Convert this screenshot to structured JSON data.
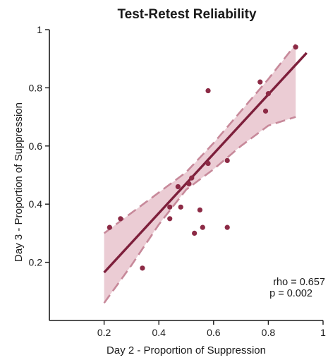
{
  "chart_data": {
    "type": "scatter",
    "title": "Test-Retest Reliability",
    "xlabel": "Day 2 - Proportion of Suppression",
    "ylabel": "Day 3  - Proportion of Suppression",
    "xlim": [
      0,
      1
    ],
    "ylim": [
      0,
      1
    ],
    "x_ticks": [
      0.2,
      0.4,
      0.6,
      0.8,
      1
    ],
    "x_tick_labels": [
      "0.2",
      "0.4",
      "0.6",
      "0.8",
      "1"
    ],
    "y_ticks": [
      0.2,
      0.4,
      0.6,
      0.8,
      1
    ],
    "y_tick_labels": [
      "0.2",
      "0.4",
      "0.6",
      "0.8",
      "1"
    ],
    "grid": false,
    "points": [
      {
        "x": 0.22,
        "y": 0.32
      },
      {
        "x": 0.26,
        "y": 0.35
      },
      {
        "x": 0.34,
        "y": 0.18
      },
      {
        "x": 0.44,
        "y": 0.39
      },
      {
        "x": 0.44,
        "y": 0.35
      },
      {
        "x": 0.47,
        "y": 0.46
      },
      {
        "x": 0.48,
        "y": 0.39
      },
      {
        "x": 0.51,
        "y": 0.47
      },
      {
        "x": 0.52,
        "y": 0.49
      },
      {
        "x": 0.53,
        "y": 0.3
      },
      {
        "x": 0.55,
        "y": 0.38
      },
      {
        "x": 0.56,
        "y": 0.32
      },
      {
        "x": 0.58,
        "y": 0.79
      },
      {
        "x": 0.58,
        "y": 0.54
      },
      {
        "x": 0.65,
        "y": 0.55
      },
      {
        "x": 0.65,
        "y": 0.32
      },
      {
        "x": 0.77,
        "y": 0.82
      },
      {
        "x": 0.79,
        "y": 0.72
      },
      {
        "x": 0.8,
        "y": 0.78
      },
      {
        "x": 0.9,
        "y": 0.94
      }
    ],
    "fit_line": {
      "x": [
        0.2,
        0.94
      ],
      "y": [
        0.165,
        0.92
      ]
    },
    "confidence_band": {
      "x": [
        0.2,
        0.3,
        0.4,
        0.5,
        0.6,
        0.7,
        0.8,
        0.9
      ],
      "upper": [
        0.3,
        0.37,
        0.44,
        0.51,
        0.61,
        0.72,
        0.83,
        0.95
      ],
      "lower": [
        0.06,
        0.19,
        0.33,
        0.45,
        0.52,
        0.6,
        0.67,
        0.7
      ]
    },
    "annotations": [
      "rho = 0.657",
      "p = 0.002"
    ],
    "colors": {
      "points": "#8c2a45",
      "line": "#7d1f3b",
      "band_fill": "#e8c3cc",
      "band_edge": "#c7899a",
      "axis": "#1a1a1a"
    }
  }
}
